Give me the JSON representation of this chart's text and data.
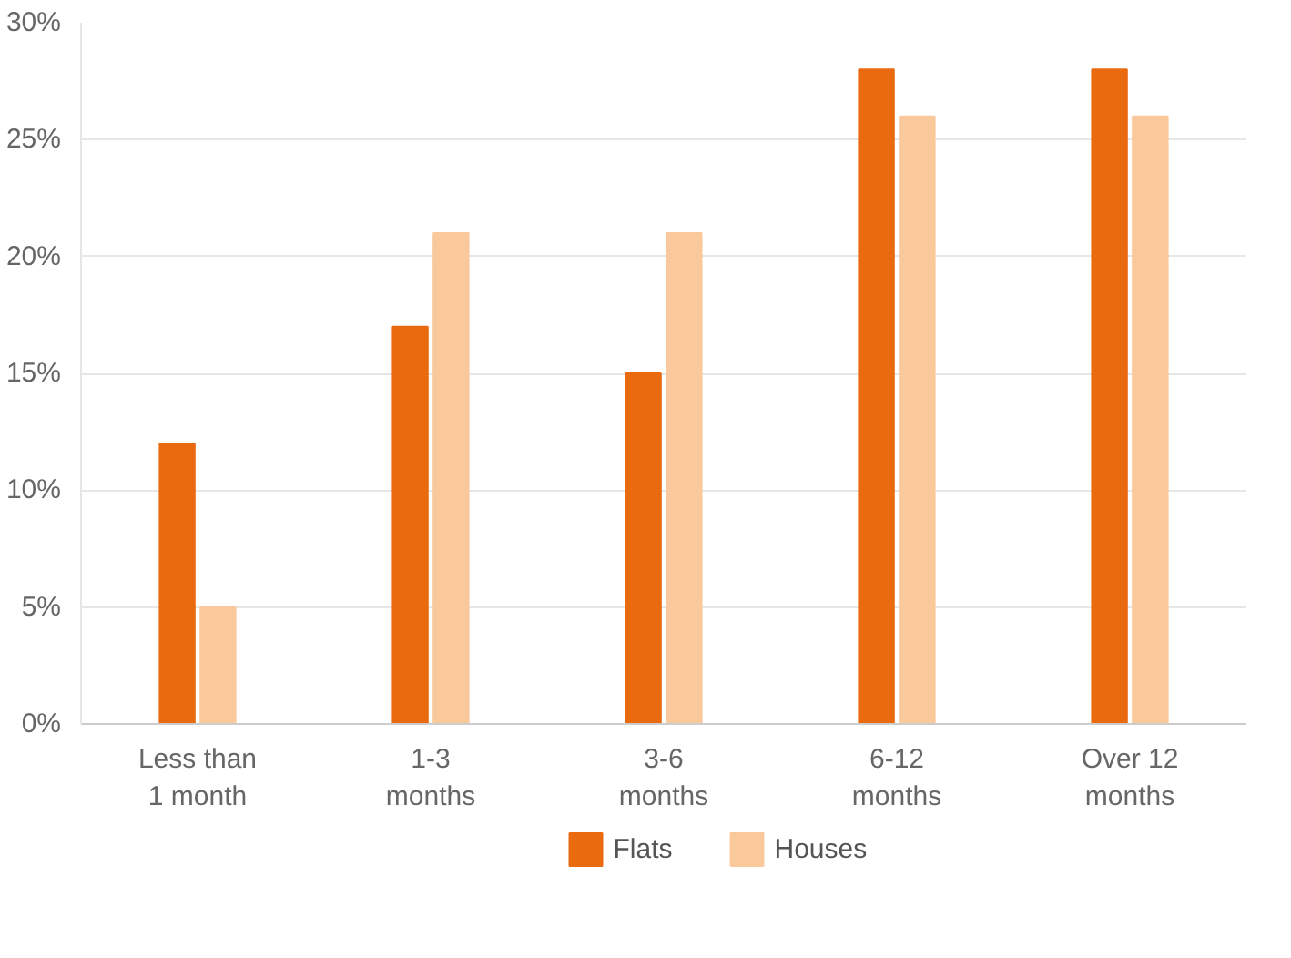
{
  "chart_data": {
    "type": "bar",
    "categories": [
      "Less than 1 month",
      "1-3 months",
      "3-6 months",
      "6-12 months",
      "Over 12 months"
    ],
    "series": [
      {
        "name": "Flats",
        "color": "#ea6a10",
        "values": [
          12,
          17,
          15,
          28,
          28
        ]
      },
      {
        "name": "Houses",
        "color": "#f9c99b",
        "values": [
          5,
          21,
          21,
          26,
          26
        ]
      }
    ],
    "ylim": [
      0,
      30
    ],
    "yticks": [
      {
        "value": 0,
        "label": "0%"
      },
      {
        "value": 5,
        "label": "5%"
      },
      {
        "value": 10,
        "label": "10%"
      },
      {
        "value": 15,
        "label": "15%"
      },
      {
        "value": 20,
        "label": "20%"
      },
      {
        "value": 25,
        "label": "25%"
      },
      {
        "value": 30,
        "label": "30%"
      }
    ],
    "grid": "y",
    "legend": "bottom"
  }
}
